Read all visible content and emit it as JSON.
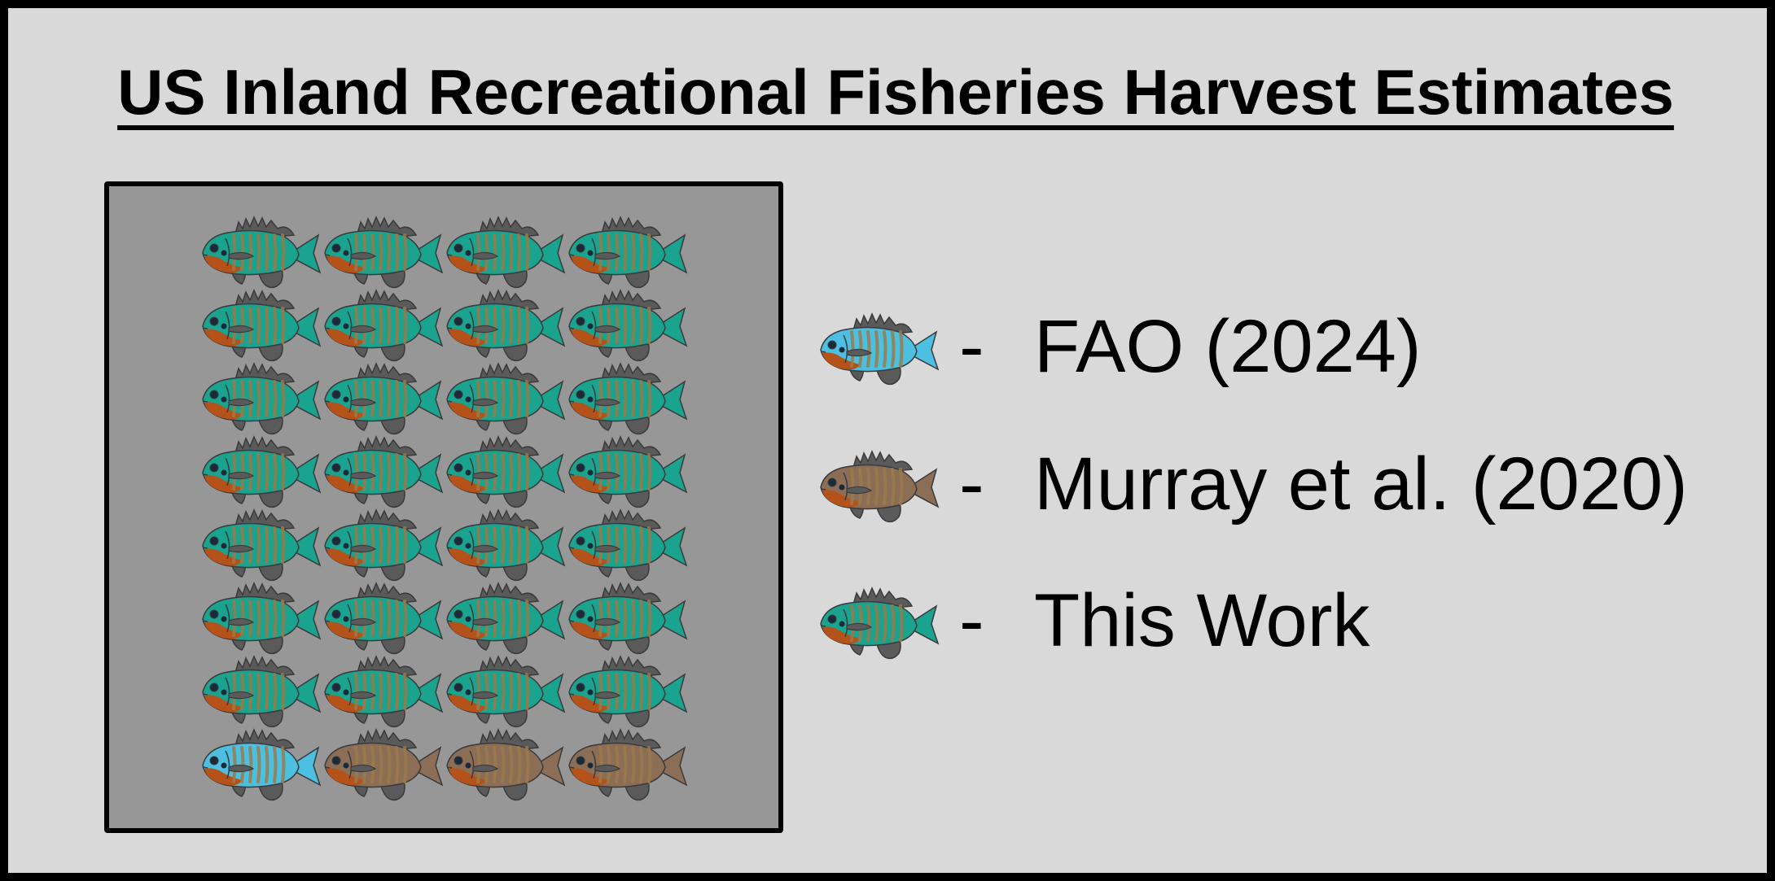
{
  "title": "US Inland Recreational Fisheries Harvest Estimates",
  "colors": {
    "background": "#d9d9d9",
    "grid_background": "#979797",
    "fao": "#4dbfe0",
    "murray": "#8c6e56",
    "this_work": "#1aa38f",
    "stripe": "#9a7a4a",
    "belly": "#b5521a",
    "fin": "#5a5a5a"
  },
  "grid": {
    "rows": 8,
    "columns": 4,
    "cells": [
      "this_work",
      "this_work",
      "this_work",
      "this_work",
      "this_work",
      "this_work",
      "this_work",
      "this_work",
      "this_work",
      "this_work",
      "this_work",
      "this_work",
      "this_work",
      "this_work",
      "this_work",
      "this_work",
      "this_work",
      "this_work",
      "this_work",
      "this_work",
      "this_work",
      "this_work",
      "this_work",
      "this_work",
      "this_work",
      "this_work",
      "this_work",
      "this_work",
      "fao",
      "murray",
      "murray",
      "murray"
    ]
  },
  "legend": [
    {
      "key": "fao",
      "dash": "-",
      "label": "FAO (2024)",
      "icon": "bluegill-fish-icon"
    },
    {
      "key": "murray",
      "dash": "-",
      "label": "Murray et al. (2020)",
      "icon": "bluegill-fish-icon"
    },
    {
      "key": "this_work",
      "dash": "-",
      "label": "This Work",
      "icon": "bluegill-fish-icon"
    }
  ]
}
